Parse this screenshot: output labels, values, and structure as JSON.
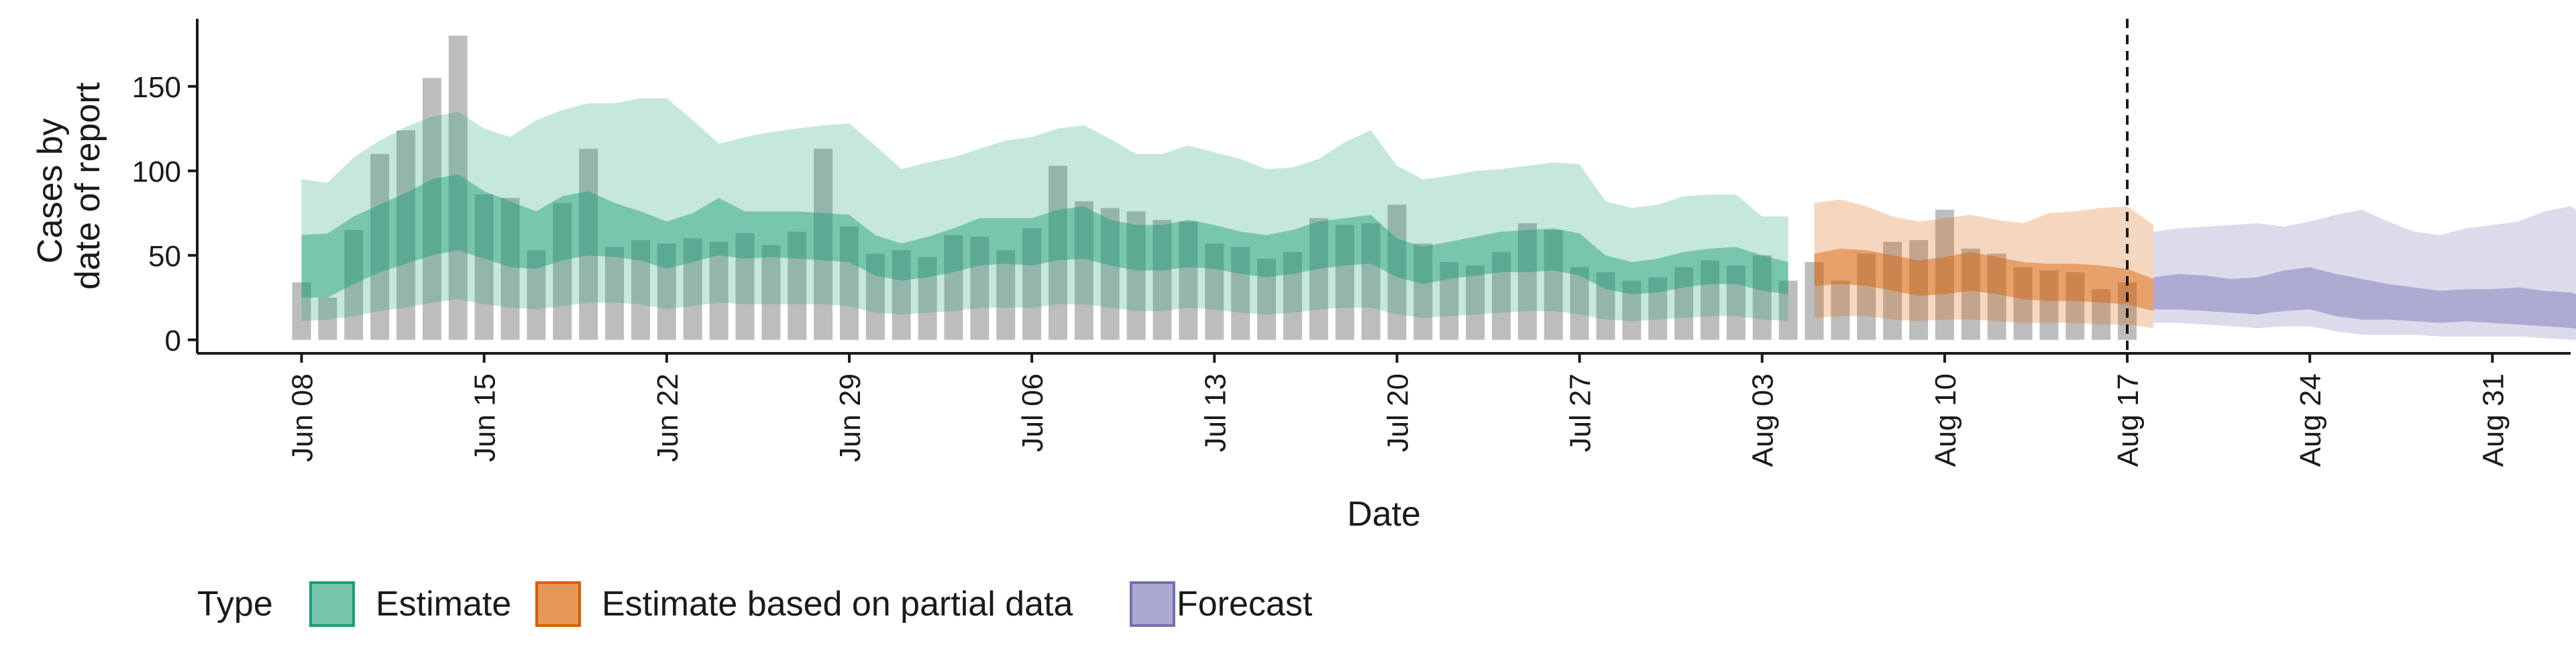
{
  "chart_data": {
    "type": "area",
    "xlabel": "Date",
    "ylabel_lines": [
      "Cases by",
      "date of report"
    ],
    "ylim": [
      -8,
      190
    ],
    "y_ticks": [
      0,
      50,
      100,
      150
    ],
    "x_start": "2020-06-04",
    "x_end": "2020-09-03",
    "x_ticks": [
      {
        "date": "2020-06-08",
        "label": "Jun 08"
      },
      {
        "date": "2020-06-15",
        "label": "Jun 15"
      },
      {
        "date": "2020-06-22",
        "label": "Jun 22"
      },
      {
        "date": "2020-06-29",
        "label": "Jun 29"
      },
      {
        "date": "2020-07-06",
        "label": "Jul 06"
      },
      {
        "date": "2020-07-13",
        "label": "Jul 13"
      },
      {
        "date": "2020-07-20",
        "label": "Jul 20"
      },
      {
        "date": "2020-07-27",
        "label": "Jul 27"
      },
      {
        "date": "2020-08-03",
        "label": "Aug 03"
      },
      {
        "date": "2020-08-10",
        "label": "Aug 10"
      },
      {
        "date": "2020-08-17",
        "label": "Aug 17"
      },
      {
        "date": "2020-08-24",
        "label": "Aug 24"
      },
      {
        "date": "2020-08-31",
        "label": "Aug 31"
      }
    ],
    "vline_date": "2020-08-17",
    "bars": {
      "start_date": "2020-06-08",
      "values": [
        34,
        25,
        65,
        110,
        124,
        155,
        180,
        86,
        84,
        53,
        81,
        113,
        55,
        59,
        57,
        60,
        58,
        63,
        56,
        64,
        113,
        67,
        51,
        53,
        49,
        62,
        61,
        53,
        66,
        103,
        82,
        78,
        76,
        71,
        70,
        57,
        55,
        48,
        52,
        72,
        68,
        69,
        80,
        57,
        46,
        44,
        52,
        69,
        65,
        43,
        40,
        35,
        37,
        43,
        47,
        44,
        50,
        35,
        46,
        35,
        51,
        58,
        59,
        77,
        54,
        51,
        43,
        41,
        40,
        30,
        34
      ]
    },
    "legend": {
      "title": "Type",
      "items": [
        {
          "label": "Estimate",
          "fill": "#1B9E77",
          "fill_opacity": 0.6,
          "stroke": "#1B9E77"
        },
        {
          "label": "Estimate based on partial data",
          "fill": "#D95F02",
          "fill_opacity": 0.65,
          "stroke": "#D95F02"
        },
        {
          "label": "Forecast",
          "fill": "#7570B3",
          "fill_opacity": 0.6,
          "stroke": "#7570B3"
        }
      ]
    },
    "series": [
      {
        "type_label": "Estimate",
        "start_date": "2020-06-08",
        "color": "#1B9E77",
        "outer_upper": [
          95,
          93,
          108,
          118,
          126,
          132,
          135,
          125,
          120,
          130,
          136,
          140,
          140,
          143,
          143,
          130,
          116,
          120,
          123,
          125,
          127,
          128,
          115,
          101,
          105,
          108,
          113,
          118,
          120,
          125,
          127,
          119,
          110,
          110,
          115,
          111,
          107,
          101,
          102,
          107,
          117,
          124,
          103,
          95,
          97,
          100,
          101,
          103,
          105,
          104,
          82,
          78,
          80,
          85,
          86,
          86,
          73,
          73
        ],
        "inner_upper": [
          62,
          63,
          73,
          80,
          87,
          95,
          98,
          88,
          82,
          76,
          85,
          88,
          81,
          76,
          70,
          75,
          84,
          76,
          76,
          76,
          75,
          74,
          62,
          57,
          61,
          66,
          72,
          72,
          72,
          77,
          79,
          71,
          68,
          68,
          71,
          68,
          64,
          62,
          65,
          70,
          72,
          74,
          60,
          55,
          58,
          61,
          64,
          65,
          66,
          63,
          50,
          46,
          48,
          52,
          54,
          55,
          50,
          46
        ],
        "inner_lower": [
          25,
          25,
          33,
          40,
          45,
          50,
          53,
          48,
          43,
          42,
          47,
          50,
          49,
          47,
          42,
          46,
          50,
          48,
          49,
          48,
          47,
          46,
          38,
          35,
          37,
          40,
          44,
          45,
          44,
          47,
          48,
          44,
          41,
          41,
          43,
          42,
          39,
          37,
          39,
          42,
          44,
          45,
          37,
          33,
          36,
          38,
          40,
          40,
          41,
          38,
          30,
          27,
          28,
          31,
          33,
          33,
          29,
          27
        ],
        "outer_lower": [
          11,
          12,
          14,
          17,
          19,
          22,
          24,
          21,
          19,
          18,
          20,
          22,
          22,
          21,
          18,
          20,
          22,
          21,
          21,
          21,
          21,
          20,
          16,
          15,
          16,
          17,
          19,
          19,
          19,
          21,
          21,
          19,
          17,
          17,
          19,
          18,
          16,
          15,
          16,
          18,
          19,
          19,
          15,
          13,
          14,
          15,
          16,
          17,
          17,
          15,
          12,
          11,
          12,
          13,
          14,
          14,
          12,
          11
        ]
      },
      {
        "type_label": "Estimate based on partial data",
        "start_date": "2020-08-05",
        "color": "#D95F02",
        "outer_upper": [
          81,
          83,
          79,
          73,
          70,
          72,
          74,
          71,
          69,
          75,
          76,
          78,
          79,
          68
        ],
        "inner_upper": [
          51,
          54,
          53,
          50,
          47,
          49,
          52,
          49,
          46,
          45,
          45,
          44,
          42,
          36
        ],
        "inner_lower": [
          32,
          33,
          32,
          29,
          26,
          27,
          29,
          27,
          24,
          23,
          23,
          22,
          21,
          17
        ],
        "outer_lower": [
          13,
          14,
          14,
          12,
          11,
          12,
          12,
          11,
          10,
          10,
          10,
          9,
          9,
          7
        ]
      },
      {
        "type_label": "Forecast",
        "start_date": "2020-08-18",
        "color": "#7570B3",
        "outer_upper": [
          64,
          66,
          67,
          68,
          69,
          67,
          70,
          74,
          77,
          70,
          64,
          62,
          66,
          68,
          70,
          76,
          79,
          69
        ],
        "inner_upper": [
          37,
          39,
          38,
          36,
          37,
          41,
          43,
          39,
          36,
          33,
          31,
          29,
          30,
          30,
          31,
          29,
          28,
          24
        ],
        "inner_lower": [
          18,
          18,
          17,
          16,
          15,
          17,
          18,
          14,
          12,
          12,
          11,
          10,
          11,
          10,
          9,
          8,
          7,
          5
        ],
        "outer_lower": [
          10,
          10,
          9,
          8,
          7,
          8,
          8,
          5,
          3,
          3,
          3,
          2,
          2,
          2,
          2,
          1,
          0,
          0
        ]
      }
    ]
  }
}
